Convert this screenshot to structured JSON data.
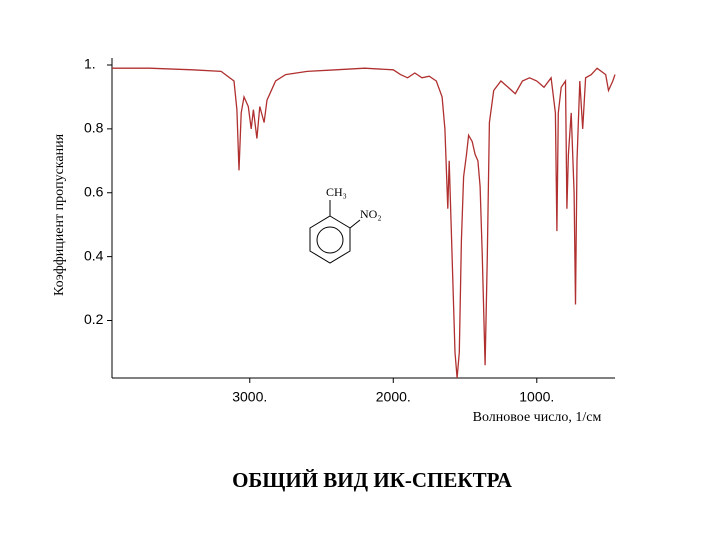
{
  "chart_data": {
    "type": "line",
    "caption": "ОБЩИЙ ВИД ИК-СПЕКТРА",
    "x_label": "Волновое число, 1/см",
    "y_label": "Коэффициент пропускания",
    "annotations": [
      "CH₃",
      "NO₂"
    ],
    "xlim": [
      3960,
      455
    ],
    "ylim": [
      0.02,
      1.02
    ],
    "xticks": [
      {
        "value": 3000,
        "label": "3000."
      },
      {
        "value": 2000,
        "label": "2000."
      },
      {
        "value": 1000,
        "label": "1000."
      }
    ],
    "yticks": [
      0.2,
      0.4,
      0.6,
      0.8,
      {
        "value": 1,
        "label": "1."
      }
    ],
    "series": [
      {
        "color": "#b03030",
        "x": [
          3960,
          3700,
          3400,
          3200,
          3110,
          3090,
          3075,
          3060,
          3040,
          3010,
          2990,
          2975,
          2950,
          2930,
          2900,
          2880,
          2860,
          2820,
          2750,
          2600,
          2400,
          2200,
          2000,
          1950,
          1900,
          1850,
          1800,
          1750,
          1700,
          1660,
          1640,
          1620,
          1610,
          1590,
          1570,
          1555,
          1540,
          1525,
          1510,
          1490,
          1475,
          1450,
          1430,
          1410,
          1395,
          1380,
          1360,
          1345,
          1330,
          1300,
          1250,
          1200,
          1150,
          1100,
          1050,
          1000,
          950,
          900,
          870,
          860,
          850,
          830,
          800,
          790,
          780,
          760,
          740,
          730,
          720,
          700,
          680,
          660,
          620,
          580,
          520,
          500,
          470,
          455
        ],
        "values": [
          0.99,
          0.99,
          0.985,
          0.98,
          0.95,
          0.86,
          0.67,
          0.85,
          0.9,
          0.87,
          0.8,
          0.86,
          0.77,
          0.87,
          0.82,
          0.89,
          0.91,
          0.95,
          0.97,
          0.98,
          0.985,
          0.99,
          0.985,
          0.97,
          0.96,
          0.975,
          0.96,
          0.965,
          0.95,
          0.9,
          0.8,
          0.55,
          0.7,
          0.4,
          0.1,
          0.02,
          0.1,
          0.45,
          0.65,
          0.72,
          0.78,
          0.76,
          0.72,
          0.7,
          0.62,
          0.4,
          0.06,
          0.4,
          0.82,
          0.92,
          0.95,
          0.93,
          0.91,
          0.95,
          0.96,
          0.95,
          0.93,
          0.96,
          0.85,
          0.48,
          0.85,
          0.93,
          0.95,
          0.55,
          0.72,
          0.85,
          0.6,
          0.25,
          0.7,
          0.95,
          0.8,
          0.96,
          0.97,
          0.99,
          0.97,
          0.92,
          0.95,
          0.97
        ]
      }
    ]
  }
}
